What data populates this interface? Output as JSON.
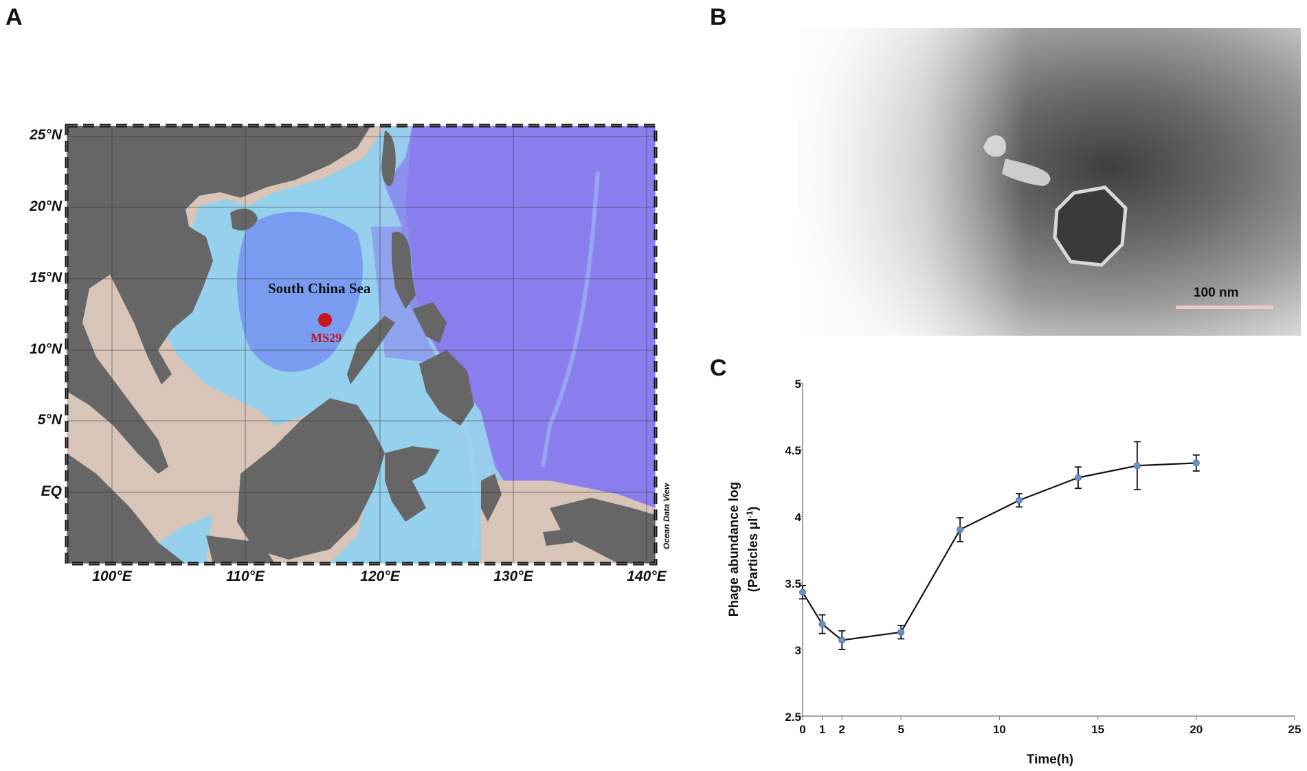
{
  "panels": {
    "a": "A",
    "b": "B",
    "c": "C"
  },
  "map": {
    "lat_labels": [
      "25°N",
      "20°N",
      "15°N",
      "10°N",
      "5°N",
      "EQ"
    ],
    "lon_labels": [
      "100°E",
      "110°E",
      "120°E",
      "130°E",
      "140°E"
    ],
    "sea_label": "South China Sea",
    "station_label": "MS29",
    "credit": "Ocean Data View",
    "colors": {
      "land": "#666666",
      "shelf": "#d8c5b7",
      "shallow": "#9ad8ec",
      "deep": "#8a7eef",
      "station": "#c8141e"
    }
  },
  "micrograph": {
    "scale_label": "100 nm"
  },
  "chart_data": {
    "type": "line",
    "title": "",
    "xlabel": "Time(h)",
    "ylabel_line1": "Phage abundance log",
    "ylabel_line2": "(Particles μl-1)",
    "xlim": [
      0,
      25
    ],
    "ylim": [
      2.5,
      5
    ],
    "x_ticks": [
      0,
      1,
      2,
      5,
      10,
      15,
      20,
      25
    ],
    "y_ticks": [
      2.5,
      3,
      3.5,
      4,
      4.5,
      5
    ],
    "grid": false,
    "series": [
      {
        "x": [
          0,
          1,
          2,
          5,
          8,
          11,
          14,
          17,
          20
        ],
        "y": [
          3.43,
          3.19,
          3.07,
          3.13,
          3.9,
          4.12,
          4.29,
          4.38,
          4.4
        ],
        "error": [
          0.05,
          0.07,
          0.07,
          0.05,
          0.09,
          0.05,
          0.08,
          0.18,
          0.06
        ],
        "color": "#6b93c9"
      }
    ]
  }
}
